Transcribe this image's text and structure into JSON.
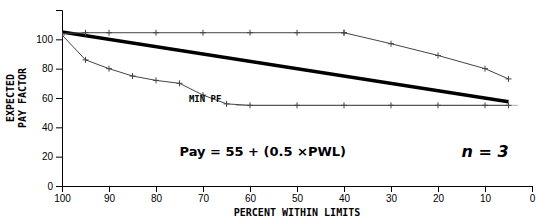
{
  "chart_data": {
    "type": "line",
    "xlabel": "PERCENT WITHIN LIMITS",
    "ylabel": "EXPECTED\nPAY FACTOR",
    "xlim": [
      100,
      0
    ],
    "ylim": [
      0,
      120
    ],
    "xticks": [
      100,
      90,
      80,
      70,
      60,
      50,
      40,
      30,
      20,
      10,
      0
    ],
    "yticks": [
      0,
      20,
      40,
      60,
      80,
      100
    ],
    "grid": false,
    "series": [
      {
        "x": [
          63,
          3
        ],
        "values": [
          55,
          55
        ],
        "color": "#aaaaaa"
      },
      {
        "x": [
          100,
          5
        ],
        "values": [
          105,
          57.5
        ],
        "color": "#000000"
      },
      {
        "x": [
          100,
          95,
          90,
          80,
          70,
          60,
          50,
          40,
          40,
          30,
          20,
          10,
          5
        ],
        "values": [
          104,
          104.5,
          104.5,
          104.5,
          104.5,
          104.5,
          104.5,
          104.5,
          104.5,
          97,
          89,
          80,
          73
        ],
        "color": "#444444",
        "marker": "plus"
      },
      {
        "x": [
          100,
          95,
          90,
          85,
          80,
          75,
          70,
          65,
          60,
          50,
          40,
          30,
          20,
          10,
          5
        ],
        "values": [
          103,
          86,
          80,
          75,
          72,
          70,
          62,
          56,
          55,
          55,
          55,
          55,
          55,
          55,
          55
        ],
        "color": "#444444",
        "marker": "plus"
      }
    ],
    "annotations": [
      {
        "text": "MIN PF",
        "x": 73,
        "y": 57
      },
      {
        "text": "Pay = 55 + (0.5 ×PWL)",
        "x": 75,
        "y": 23
      },
      {
        "text": "n = 3",
        "x": 10,
        "y": 23
      }
    ]
  }
}
